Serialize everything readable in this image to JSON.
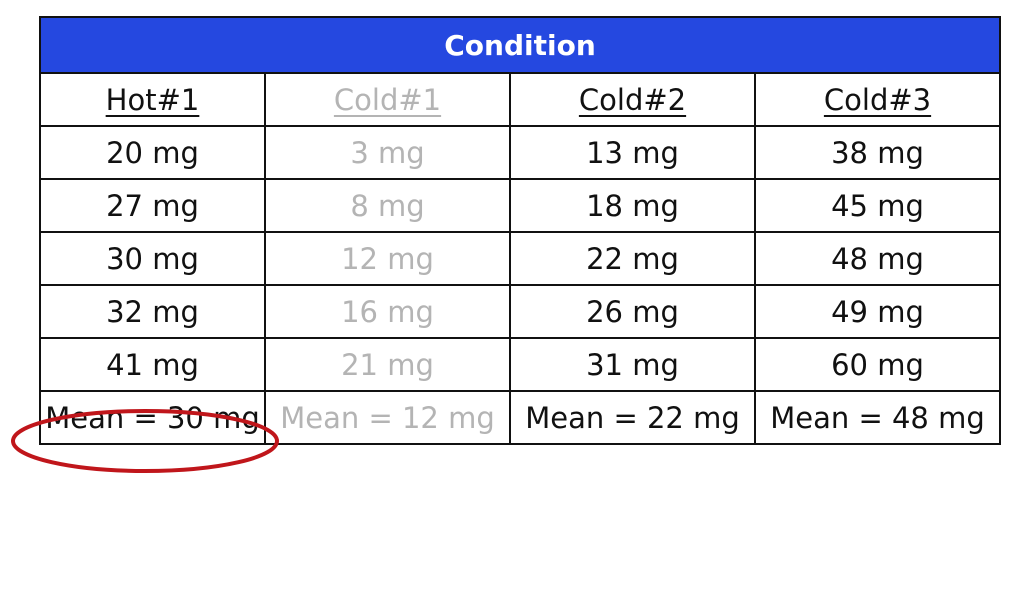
{
  "table": {
    "title": "Condition",
    "headers": [
      "Hot#1",
      "Cold#1",
      "Cold#2",
      "Cold#3"
    ],
    "rows": [
      [
        "20 mg",
        "3 mg",
        "13 mg",
        "38 mg"
      ],
      [
        "27 mg",
        "8 mg",
        "18 mg",
        "45 mg"
      ],
      [
        "30 mg",
        "12 mg",
        "22 mg",
        "48 mg"
      ],
      [
        "32 mg",
        "16 mg",
        "26 mg",
        "49 mg"
      ],
      [
        "41 mg",
        "21 mg",
        "31 mg",
        "60 mg"
      ]
    ],
    "means": [
      "Mean = 30 mg",
      "Mean = 12 mg",
      "Mean = 22 mg",
      "Mean = 48 mg"
    ]
  },
  "colors": {
    "title_background": "#2548e0",
    "title_text": "#ffffff",
    "text": "#111111",
    "faded_text": "#b4b4b4",
    "highlight": "#c0161b"
  }
}
